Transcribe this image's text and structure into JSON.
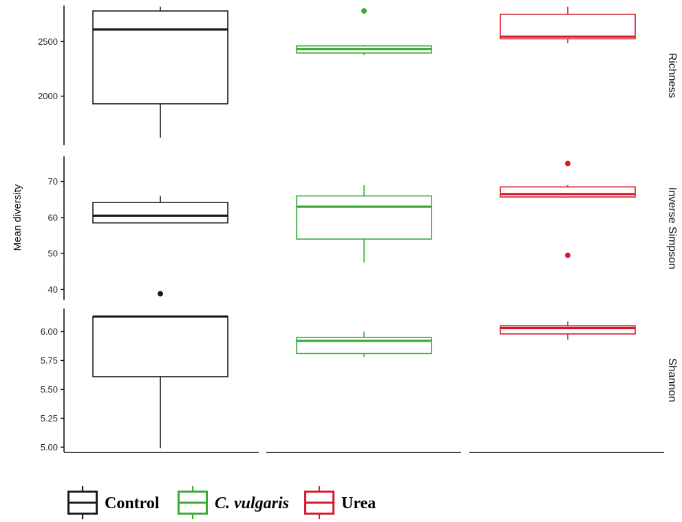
{
  "chart_data": {
    "type": "boxplot",
    "ylabel": "Mean diversity",
    "groups": [
      "Control",
      "C. vulgaris",
      "Urea"
    ],
    "colors": {
      "Control": "#1a1a1a",
      "C. vulgaris": "#3aaa35",
      "Urea": "#d7182a"
    },
    "panels": [
      {
        "name": "Richness",
        "ylim": [
          1550,
          2830
        ],
        "ticks": [
          2000,
          2500
        ],
        "tick_labels": [
          "2000",
          "2500"
        ],
        "boxes": [
          {
            "group": "Control",
            "min": 1620,
            "q1": 1930,
            "median": 2610,
            "q3": 2780,
            "max": 2820,
            "outliers": []
          },
          {
            "group": "C. vulgaris",
            "min": 2375,
            "q1": 2395,
            "median": 2430,
            "q3": 2460,
            "max": 2470,
            "outliers": [
              2780
            ]
          },
          {
            "group": "Urea",
            "min": 2485,
            "q1": 2525,
            "median": 2545,
            "q3": 2750,
            "max": 2820,
            "outliers": []
          }
        ]
      },
      {
        "name": "Inverse Simpson",
        "ylim": [
          37,
          77
        ],
        "ticks": [
          40,
          50,
          60,
          70
        ],
        "tick_labels": [
          "40",
          "50",
          "60",
          "70"
        ],
        "boxes": [
          {
            "group": "Control",
            "min": 58.5,
            "q1": 58.5,
            "median": 60.5,
            "q3": 64.2,
            "max": 66,
            "outliers": [
              38.8
            ]
          },
          {
            "group": "C. vulgaris",
            "min": 47.5,
            "q1": 54,
            "median": 63,
            "q3": 66,
            "max": 69,
            "outliers": []
          },
          {
            "group": "Urea",
            "min": 65.5,
            "q1": 65.7,
            "median": 66.5,
            "q3": 68.5,
            "max": 69,
            "outliers": [
              75,
              49.5
            ]
          }
        ]
      },
      {
        "name": "Shannon",
        "ylim": [
          4.96,
          6.2
        ],
        "ticks": [
          5.0,
          5.25,
          5.5,
          5.75,
          6.0
        ],
        "tick_labels": [
          "5.00",
          "5.25",
          "5.50",
          "5.75",
          "6.00"
        ],
        "boxes": [
          {
            "group": "Control",
            "min": 4.99,
            "q1": 5.61,
            "median": 6.13,
            "q3": 6.13,
            "max": 6.13,
            "outliers": []
          },
          {
            "group": "C. vulgaris",
            "min": 5.78,
            "q1": 5.81,
            "median": 5.92,
            "q3": 5.95,
            "max": 6.0,
            "outliers": []
          },
          {
            "group": "Urea",
            "min": 5.93,
            "q1": 5.98,
            "median": 6.03,
            "q3": 6.05,
            "max": 6.09,
            "outliers": []
          }
        ]
      }
    ],
    "legend": {
      "position": "bottom-left",
      "items": [
        {
          "label": "Control",
          "italic": false
        },
        {
          "label": "C. vulgaris",
          "italic": true
        },
        {
          "label": "Urea",
          "italic": false
        }
      ]
    },
    "grid": false
  }
}
